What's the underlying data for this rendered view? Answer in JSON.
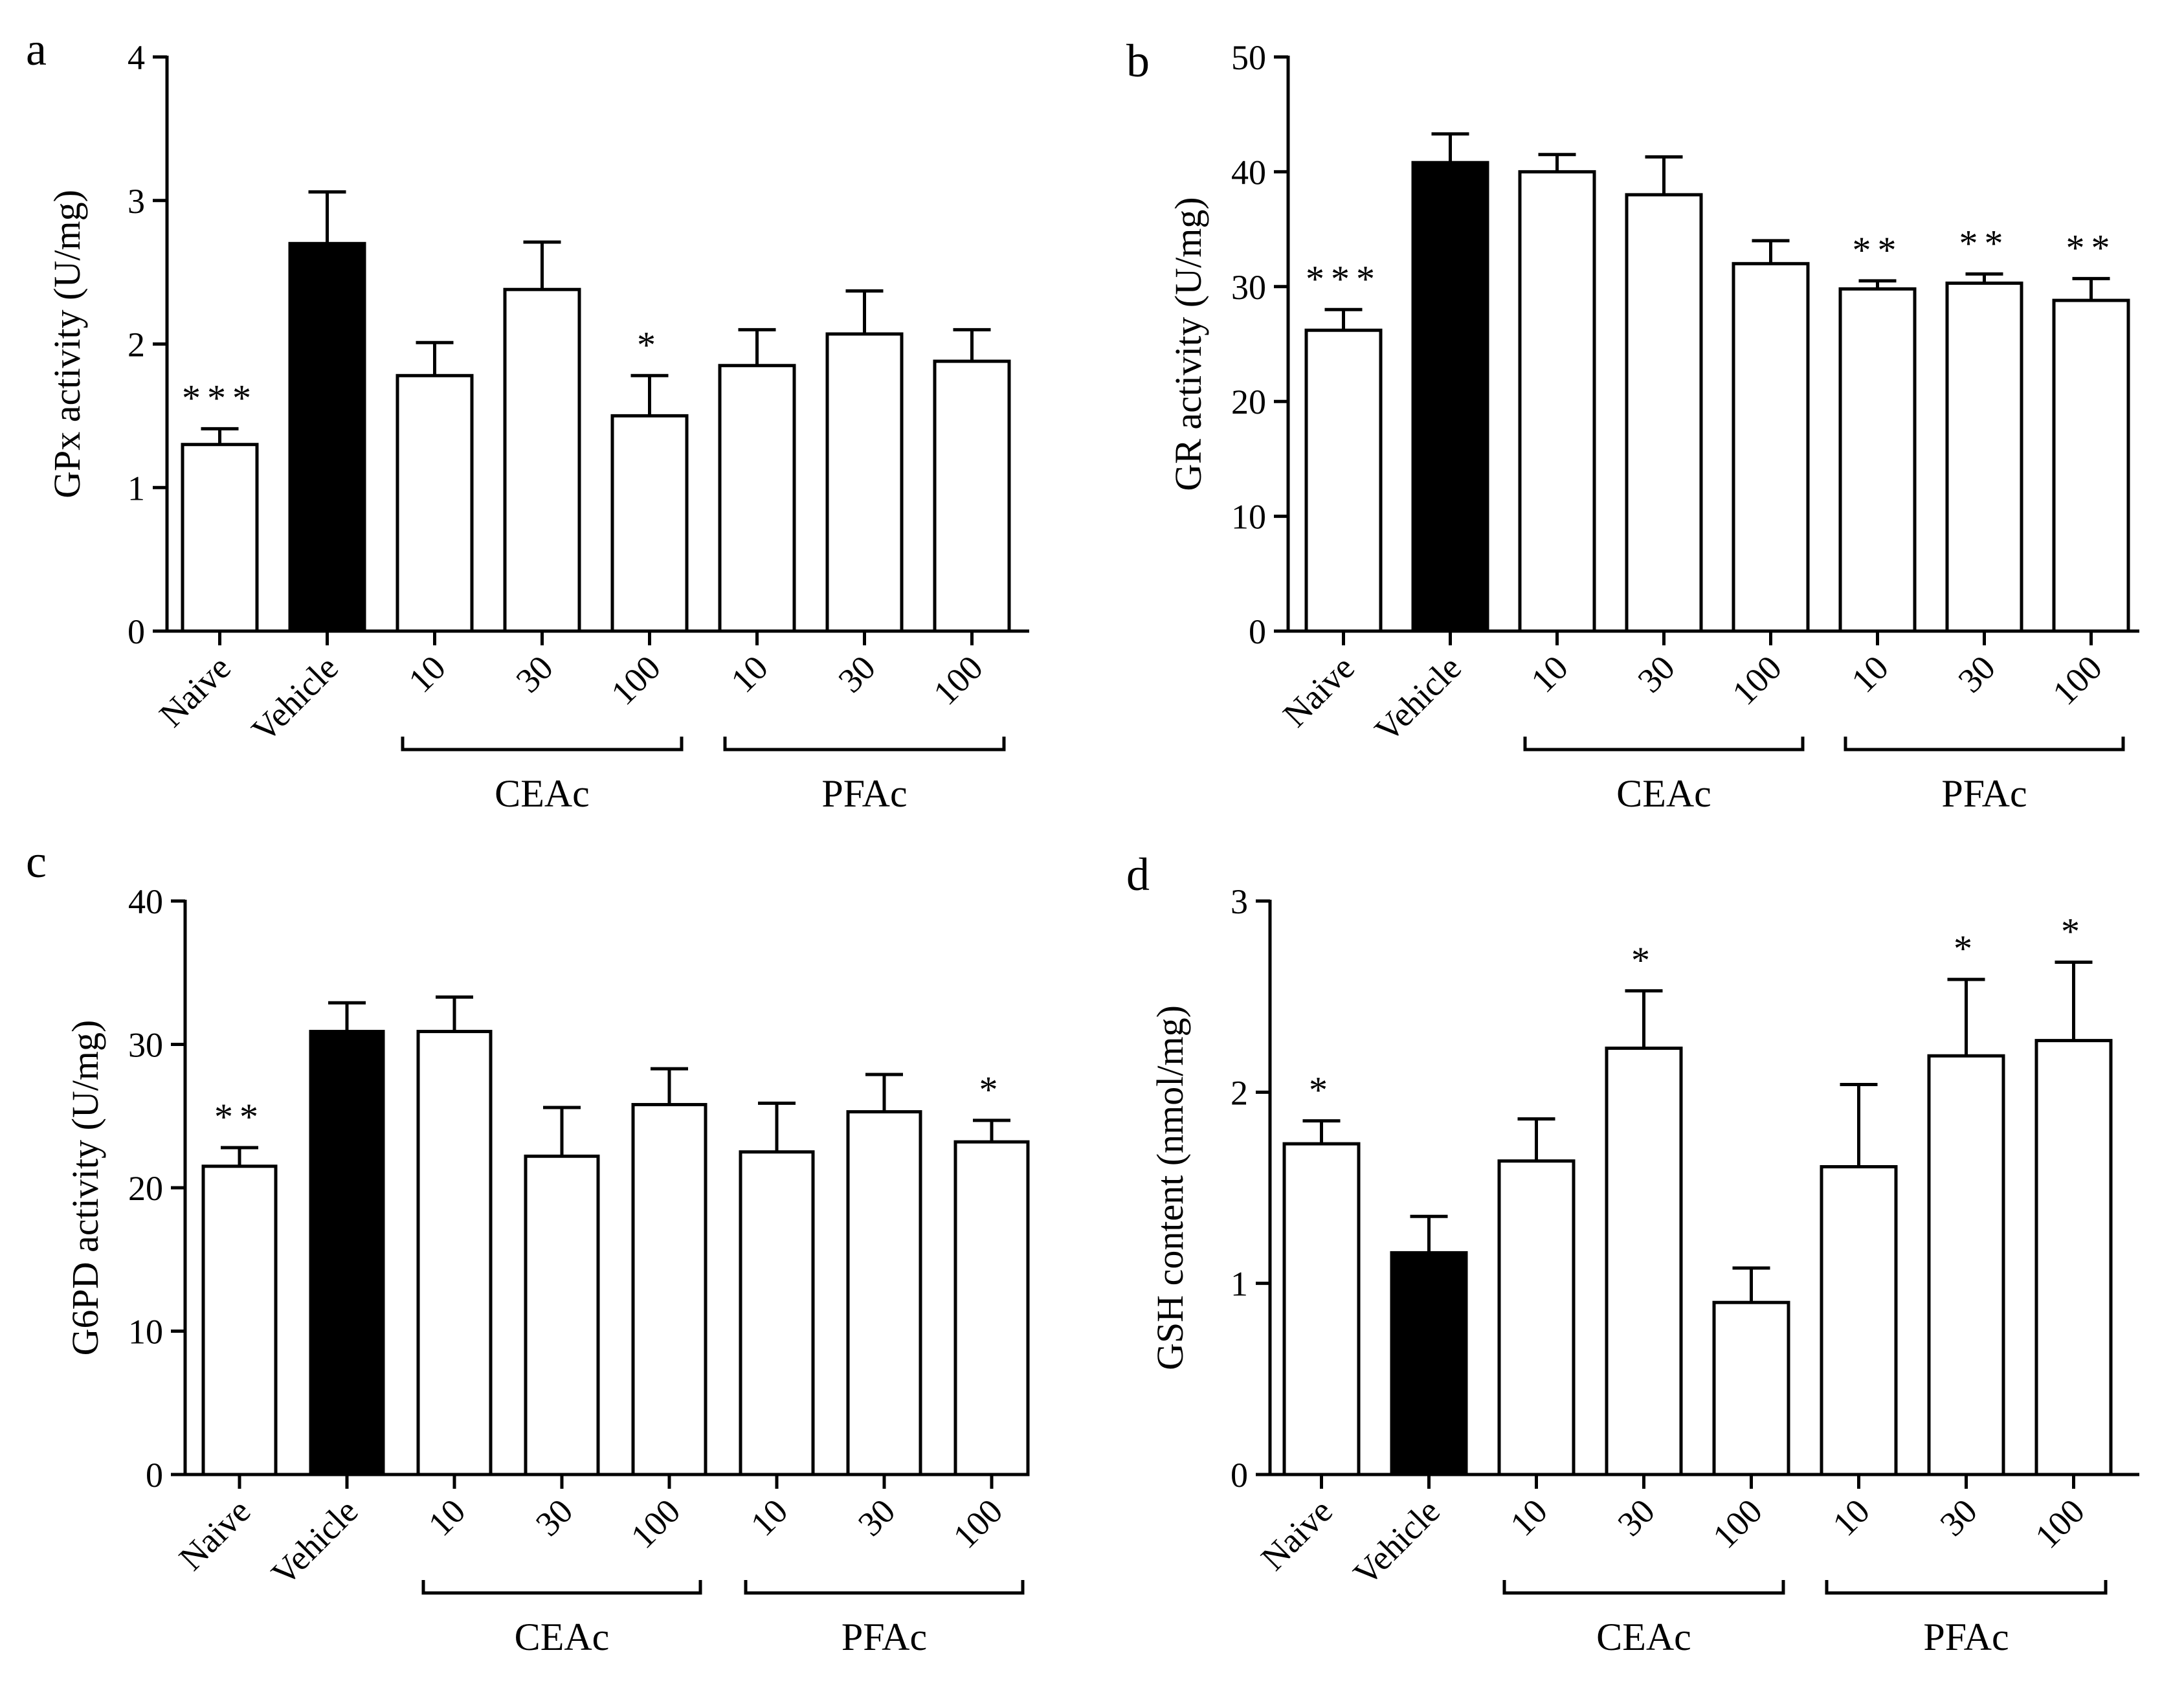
{
  "chart_data": [
    {
      "panel": "a",
      "type": "bar",
      "categories": [
        "Naive",
        "Vehicle",
        "10",
        "30",
        "100",
        "10",
        "30",
        "100"
      ],
      "values": [
        1.3,
        2.7,
        1.78,
        2.38,
        1.5,
        1.85,
        2.07,
        1.88
      ],
      "errors": [
        0.11,
        0.36,
        0.23,
        0.33,
        0.28,
        0.25,
        0.3,
        0.22
      ],
      "fills": [
        "#ffffff",
        "#000000",
        "#ffffff",
        "#ffffff",
        "#ffffff",
        "#ffffff",
        "#ffffff",
        "#ffffff"
      ],
      "significance": [
        "***",
        "",
        "",
        "",
        "*",
        "",
        "",
        ""
      ],
      "ylabel": "GPx activity (U/mg)",
      "ylim": [
        0,
        4
      ],
      "yticks": [
        0,
        1,
        2,
        3,
        4
      ],
      "groups": [
        {
          "label": "CEAc",
          "from": 2,
          "to": 4
        },
        {
          "label": "PFAc",
          "from": 5,
          "to": 7
        }
      ]
    },
    {
      "panel": "b",
      "type": "bar",
      "categories": [
        "Naive",
        "Vehicle",
        "10",
        "30",
        "100",
        "10",
        "30",
        "100"
      ],
      "values": [
        26.2,
        40.8,
        40.0,
        38.0,
        32.0,
        29.8,
        30.3,
        28.8
      ],
      "errors": [
        1.8,
        2.5,
        1.5,
        3.3,
        2.0,
        0.7,
        0.8,
        1.9
      ],
      "fills": [
        "#ffffff",
        "#000000",
        "#ffffff",
        "#ffffff",
        "#ffffff",
        "#ffffff",
        "#ffffff",
        "#ffffff"
      ],
      "significance": [
        "***",
        "",
        "",
        "",
        "",
        "**",
        "**",
        "**"
      ],
      "ylabel": "GR activity (U/mg)",
      "ylim": [
        0,
        50
      ],
      "yticks": [
        0,
        10,
        20,
        30,
        40,
        50
      ],
      "groups": [
        {
          "label": "CEAc",
          "from": 2,
          "to": 4
        },
        {
          "label": "PFAc",
          "from": 5,
          "to": 7
        }
      ]
    },
    {
      "panel": "c",
      "type": "bar",
      "categories": [
        "Naive",
        "Vehicle",
        "10",
        "30",
        "100",
        "10",
        "30",
        "100"
      ],
      "values": [
        21.5,
        30.9,
        30.9,
        22.2,
        25.8,
        22.5,
        25.3,
        23.2
      ],
      "errors": [
        1.3,
        2.0,
        2.4,
        3.4,
        2.5,
        3.4,
        2.6,
        1.5
      ],
      "fills": [
        "#ffffff",
        "#000000",
        "#ffffff",
        "#ffffff",
        "#ffffff",
        "#ffffff",
        "#ffffff",
        "#ffffff"
      ],
      "significance": [
        "**",
        "",
        "",
        "",
        "",
        "",
        "",
        "*"
      ],
      "ylabel": "G6PD activity (U/mg)",
      "ylim": [
        0,
        40
      ],
      "yticks": [
        0,
        10,
        20,
        30,
        40
      ],
      "groups": [
        {
          "label": "CEAc",
          "from": 2,
          "to": 4
        },
        {
          "label": "PFAc",
          "from": 5,
          "to": 7
        }
      ]
    },
    {
      "panel": "d",
      "type": "bar",
      "categories": [
        "Naive",
        "Vehicle",
        "10",
        "30",
        "100",
        "10",
        "30",
        "100"
      ],
      "values": [
        1.73,
        1.16,
        1.64,
        2.23,
        0.9,
        1.61,
        2.19,
        2.27
      ],
      "errors": [
        0.12,
        0.19,
        0.22,
        0.3,
        0.18,
        0.43,
        0.4,
        0.41
      ],
      "fills": [
        "#ffffff",
        "#000000",
        "#ffffff",
        "#ffffff",
        "#ffffff",
        "#ffffff",
        "#ffffff",
        "#ffffff"
      ],
      "significance": [
        "*",
        "",
        "",
        "*",
        "",
        "",
        "*",
        "*"
      ],
      "ylabel": "GSH content (nmol/mg)",
      "ylim": [
        0,
        3
      ],
      "yticks": [
        0,
        1,
        2,
        3
      ],
      "groups": [
        {
          "label": "CEAc",
          "from": 2,
          "to": 4
        },
        {
          "label": "PFAc",
          "from": 5,
          "to": 7
        }
      ]
    }
  ]
}
